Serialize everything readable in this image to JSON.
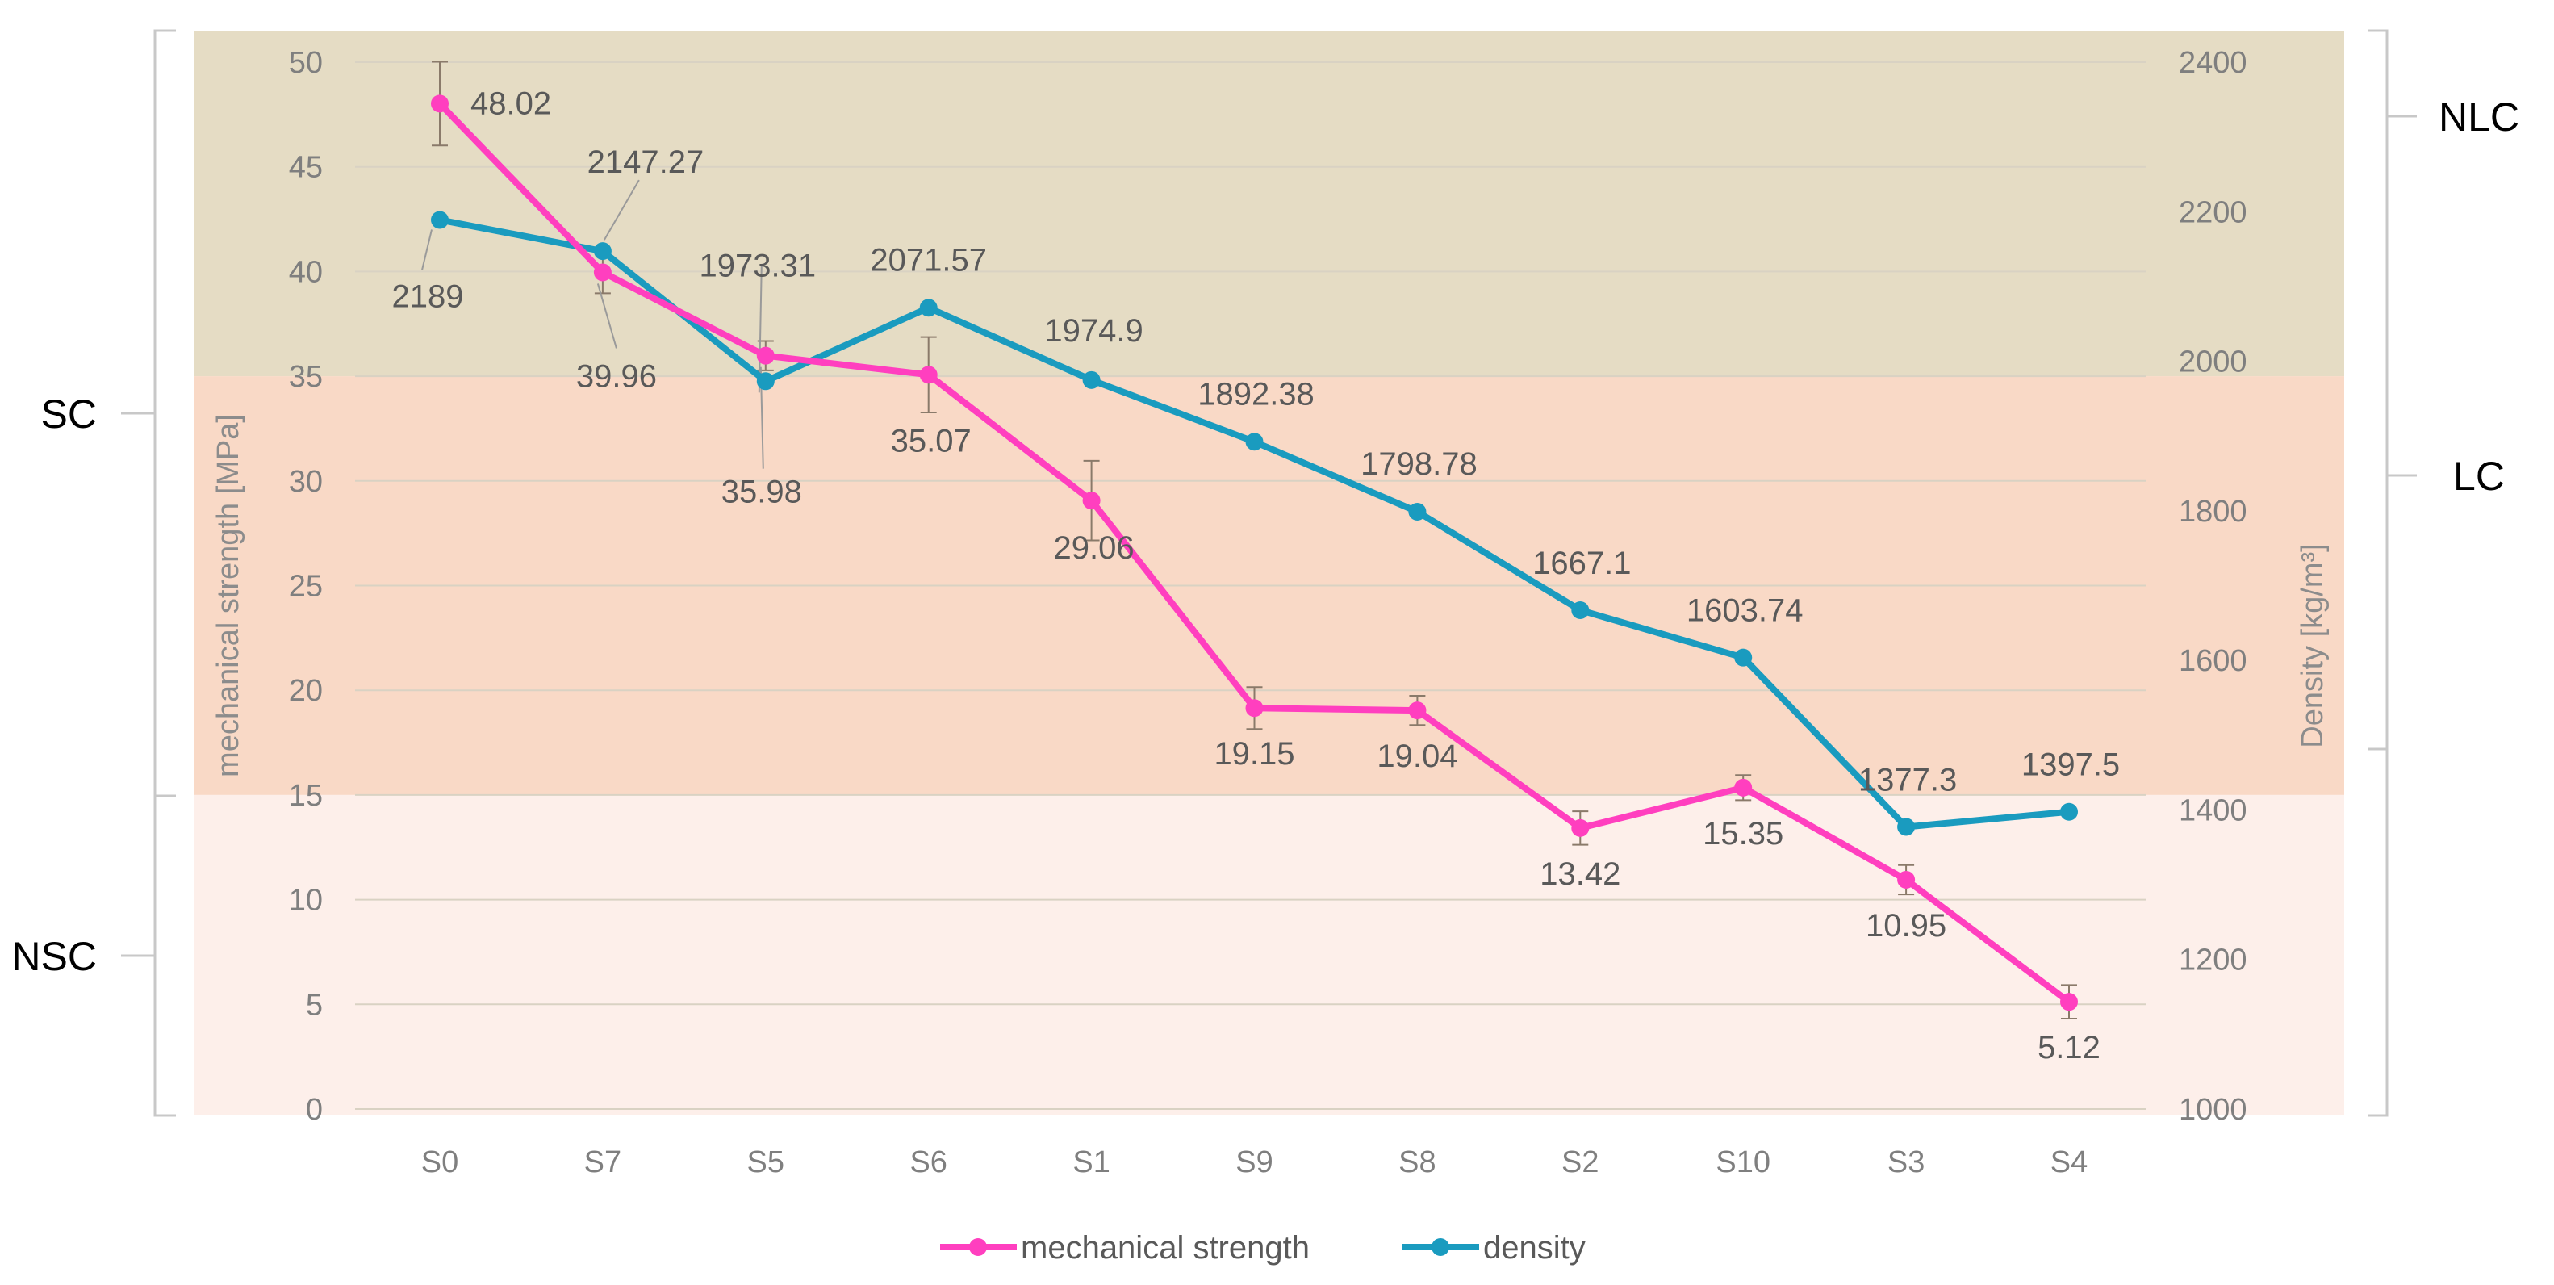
{
  "chart_data": {
    "type": "line",
    "categories": [
      "S0",
      "S7",
      "S5",
      "S6",
      "S1",
      "S9",
      "S8",
      "S2",
      "S10",
      "S3",
      "S4"
    ],
    "series": [
      {
        "name": "mechanical strength",
        "axis": "left",
        "color": "#ff3fbf",
        "values": [
          48.02,
          39.96,
          35.98,
          35.07,
          29.06,
          19.15,
          19.04,
          13.42,
          15.35,
          10.95,
          5.12
        ],
        "errors": [
          2.0,
          1.0,
          0.7,
          1.8,
          1.9,
          1.0,
          0.7,
          0.8,
          0.6,
          0.7,
          0.8
        ],
        "labels": [
          "48.02",
          "39.96",
          "35.98",
          "35.07",
          "29.06",
          "19.15",
          "19.04",
          "13.42",
          "15.35",
          "10.95",
          "5.12"
        ]
      },
      {
        "name": "density",
        "axis": "right",
        "color": "#1a9bbf",
        "values": [
          2189,
          2147.27,
          1973.31,
          2071.57,
          1974.9,
          1892.38,
          1798.78,
          1667.1,
          1603.74,
          1377.3,
          1397.5
        ],
        "labels": [
          "2189",
          "2147.27",
          "1973.31",
          "2071.57",
          "1974.9",
          "1892.38",
          "1798.78",
          "1667.1",
          "1603.74",
          "1377.3",
          "1397.5"
        ]
      }
    ],
    "y_left": {
      "label": "mechanical strength [MPa]",
      "range": [
        0,
        50
      ],
      "ticks": [
        "0",
        "5",
        "10",
        "15",
        "20",
        "25",
        "30",
        "35",
        "40",
        "45",
        "50"
      ]
    },
    "y_right": {
      "label": "Density [kg/m³]",
      "range": [
        1000,
        2400
      ],
      "ticks": [
        "1000",
        "1200",
        "1400",
        "1600",
        "1800",
        "2000",
        "2200",
        "2400"
      ]
    },
    "bands": [
      {
        "name": "NLC",
        "from": 35,
        "to": 50,
        "color": "#e5dcc4"
      },
      {
        "name": "LC",
        "from": 15,
        "to": 35,
        "color": "#f9d9c6"
      },
      {
        "name": "NSC",
        "from": 0,
        "to": 15,
        "color": "#fdefea"
      }
    ],
    "left_brackets": [
      {
        "label": "SC",
        "from": 15,
        "to": 50
      },
      {
        "label": "NSC",
        "from": 0,
        "to": 15
      }
    ],
    "right_brackets": [
      {
        "label": "NLC",
        "from": 2000,
        "to": 2400
      },
      {
        "label": "LC",
        "from": 1400,
        "to": 2000
      }
    ],
    "legend": [
      "mechanical strength",
      "density"
    ],
    "grid": true
  }
}
